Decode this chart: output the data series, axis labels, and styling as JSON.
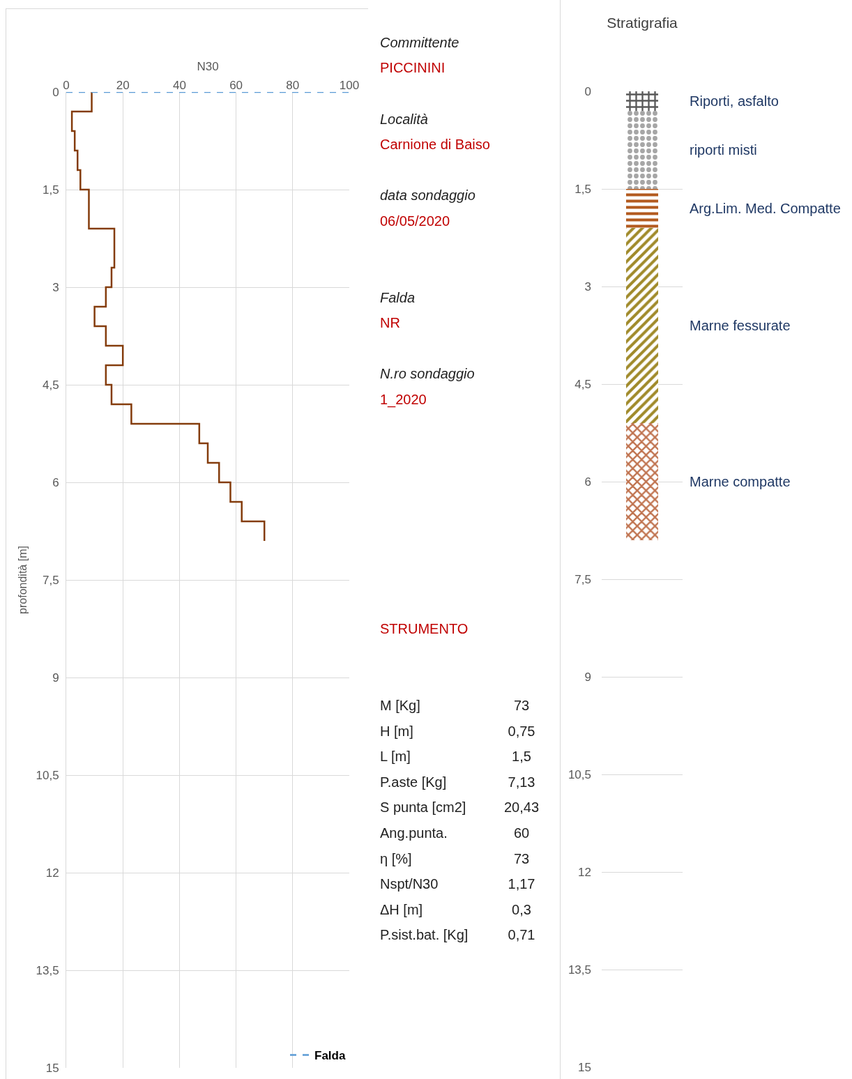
{
  "chart_data": [
    {
      "type": "line",
      "xlabel": "N30",
      "ylabel": "profondità [m]",
      "xlim": [
        0,
        100
      ],
      "xticks": [
        0,
        20,
        40,
        60,
        80,
        100
      ],
      "ylim": [
        15,
        0
      ],
      "yticks": [
        0,
        {
          "value": 1.5,
          "label": "1,5"
        },
        3,
        {
          "value": 4.5,
          "label": "4,5"
        },
        6,
        {
          "value": 7.5,
          "label": "7,5"
        },
        9,
        {
          "value": 10.5,
          "label": "10,5"
        },
        12,
        {
          "value": 13.5,
          "label": "13,5"
        },
        15
      ],
      "grid": true,
      "legend": "bottom right",
      "series": [
        {
          "color": "#843c0c",
          "x": [
            9,
            9,
            2,
            2,
            3,
            3,
            4,
            4,
            5,
            5,
            8,
            8,
            8,
            8,
            17,
            17,
            17,
            17,
            16,
            16,
            14,
            14,
            10,
            10,
            14,
            14,
            20,
            20,
            14,
            14,
            16,
            16,
            23,
            23,
            47,
            47,
            50,
            50,
            54,
            54,
            58,
            58,
            62,
            62,
            70,
            70
          ],
          "values": [
            0,
            0.3,
            0.3,
            0.6,
            0.6,
            0.9,
            0.9,
            1.2,
            1.2,
            1.5,
            1.5,
            1.8,
            1.8,
            2.1,
            2.1,
            2.4,
            2.4,
            2.7,
            2.7,
            3,
            3,
            3.3,
            3.3,
            3.6,
            3.6,
            3.9,
            3.9,
            4.2,
            4.2,
            4.5,
            4.5,
            4.8,
            4.8,
            5.1,
            5.1,
            5.4,
            5.4,
            5.7,
            5.7,
            6,
            6,
            6.3,
            6.3,
            6.6,
            6.6,
            6.9
          ]
        },
        {
          "name": "Falda",
          "color": "#5b9bd5",
          "line_style": "dashed",
          "x": [
            0,
            100
          ],
          "values": [
            0,
            0
          ]
        }
      ]
    },
    {
      "type": "other",
      "annotations": [
        "Committente",
        "PICCININI",
        "Località",
        "Carnione di Baiso",
        "data sondaggio",
        "06/05/2020",
        "Falda",
        "NR",
        "N.ro sondaggio",
        "1_2020",
        "STRUMENTO",
        "M [Kg]",
        "73",
        "H [m]",
        "0,75",
        "L [m]",
        "1,5",
        "P.aste [Kg]",
        "7,13",
        "S punta [cm2]",
        "20,43",
        "Ang.punta.",
        "60",
        "η [%]",
        "73",
        "Nspt/N30",
        "1,17",
        "ΔH [m]",
        "0,3",
        "P.sist.bat. [Kg]",
        "0,71"
      ]
    },
    {
      "type": "bar",
      "title": "Stratigrafia",
      "stacked": true,
      "categories": [
        null
      ],
      "ylim": [
        15,
        0
      ],
      "yticks": [
        0,
        {
          "value": 1.5,
          "label": "1,5"
        },
        3,
        {
          "value": 4.5,
          "label": "4,5"
        },
        6,
        {
          "value": 7.5,
          "label": "7,5"
        },
        9,
        {
          "value": 10.5,
          "label": "10,5"
        },
        12,
        {
          "value": 13.5,
          "label": "13,5"
        },
        15
      ],
      "grid": "y",
      "tick_labels": "y",
      "legend": false,
      "series": [
        {
          "name": "Riporti, asfalto",
          "color": "#595959",
          "values": [
            0.3
          ]
        },
        {
          "name": "riporti misti",
          "color": "#a6a6a6",
          "values": [
            1.2
          ]
        },
        {
          "name": "Arg.Lim. Med. Compatte",
          "color": "#b35a1f",
          "values": [
            0.6
          ]
        },
        {
          "name": "Marne fessurate",
          "color": "#a08a2a",
          "values": [
            3
          ]
        },
        {
          "name": "Marne compatte",
          "color": "#c0734f",
          "values": [
            1.8
          ]
        }
      ]
    }
  ]
}
